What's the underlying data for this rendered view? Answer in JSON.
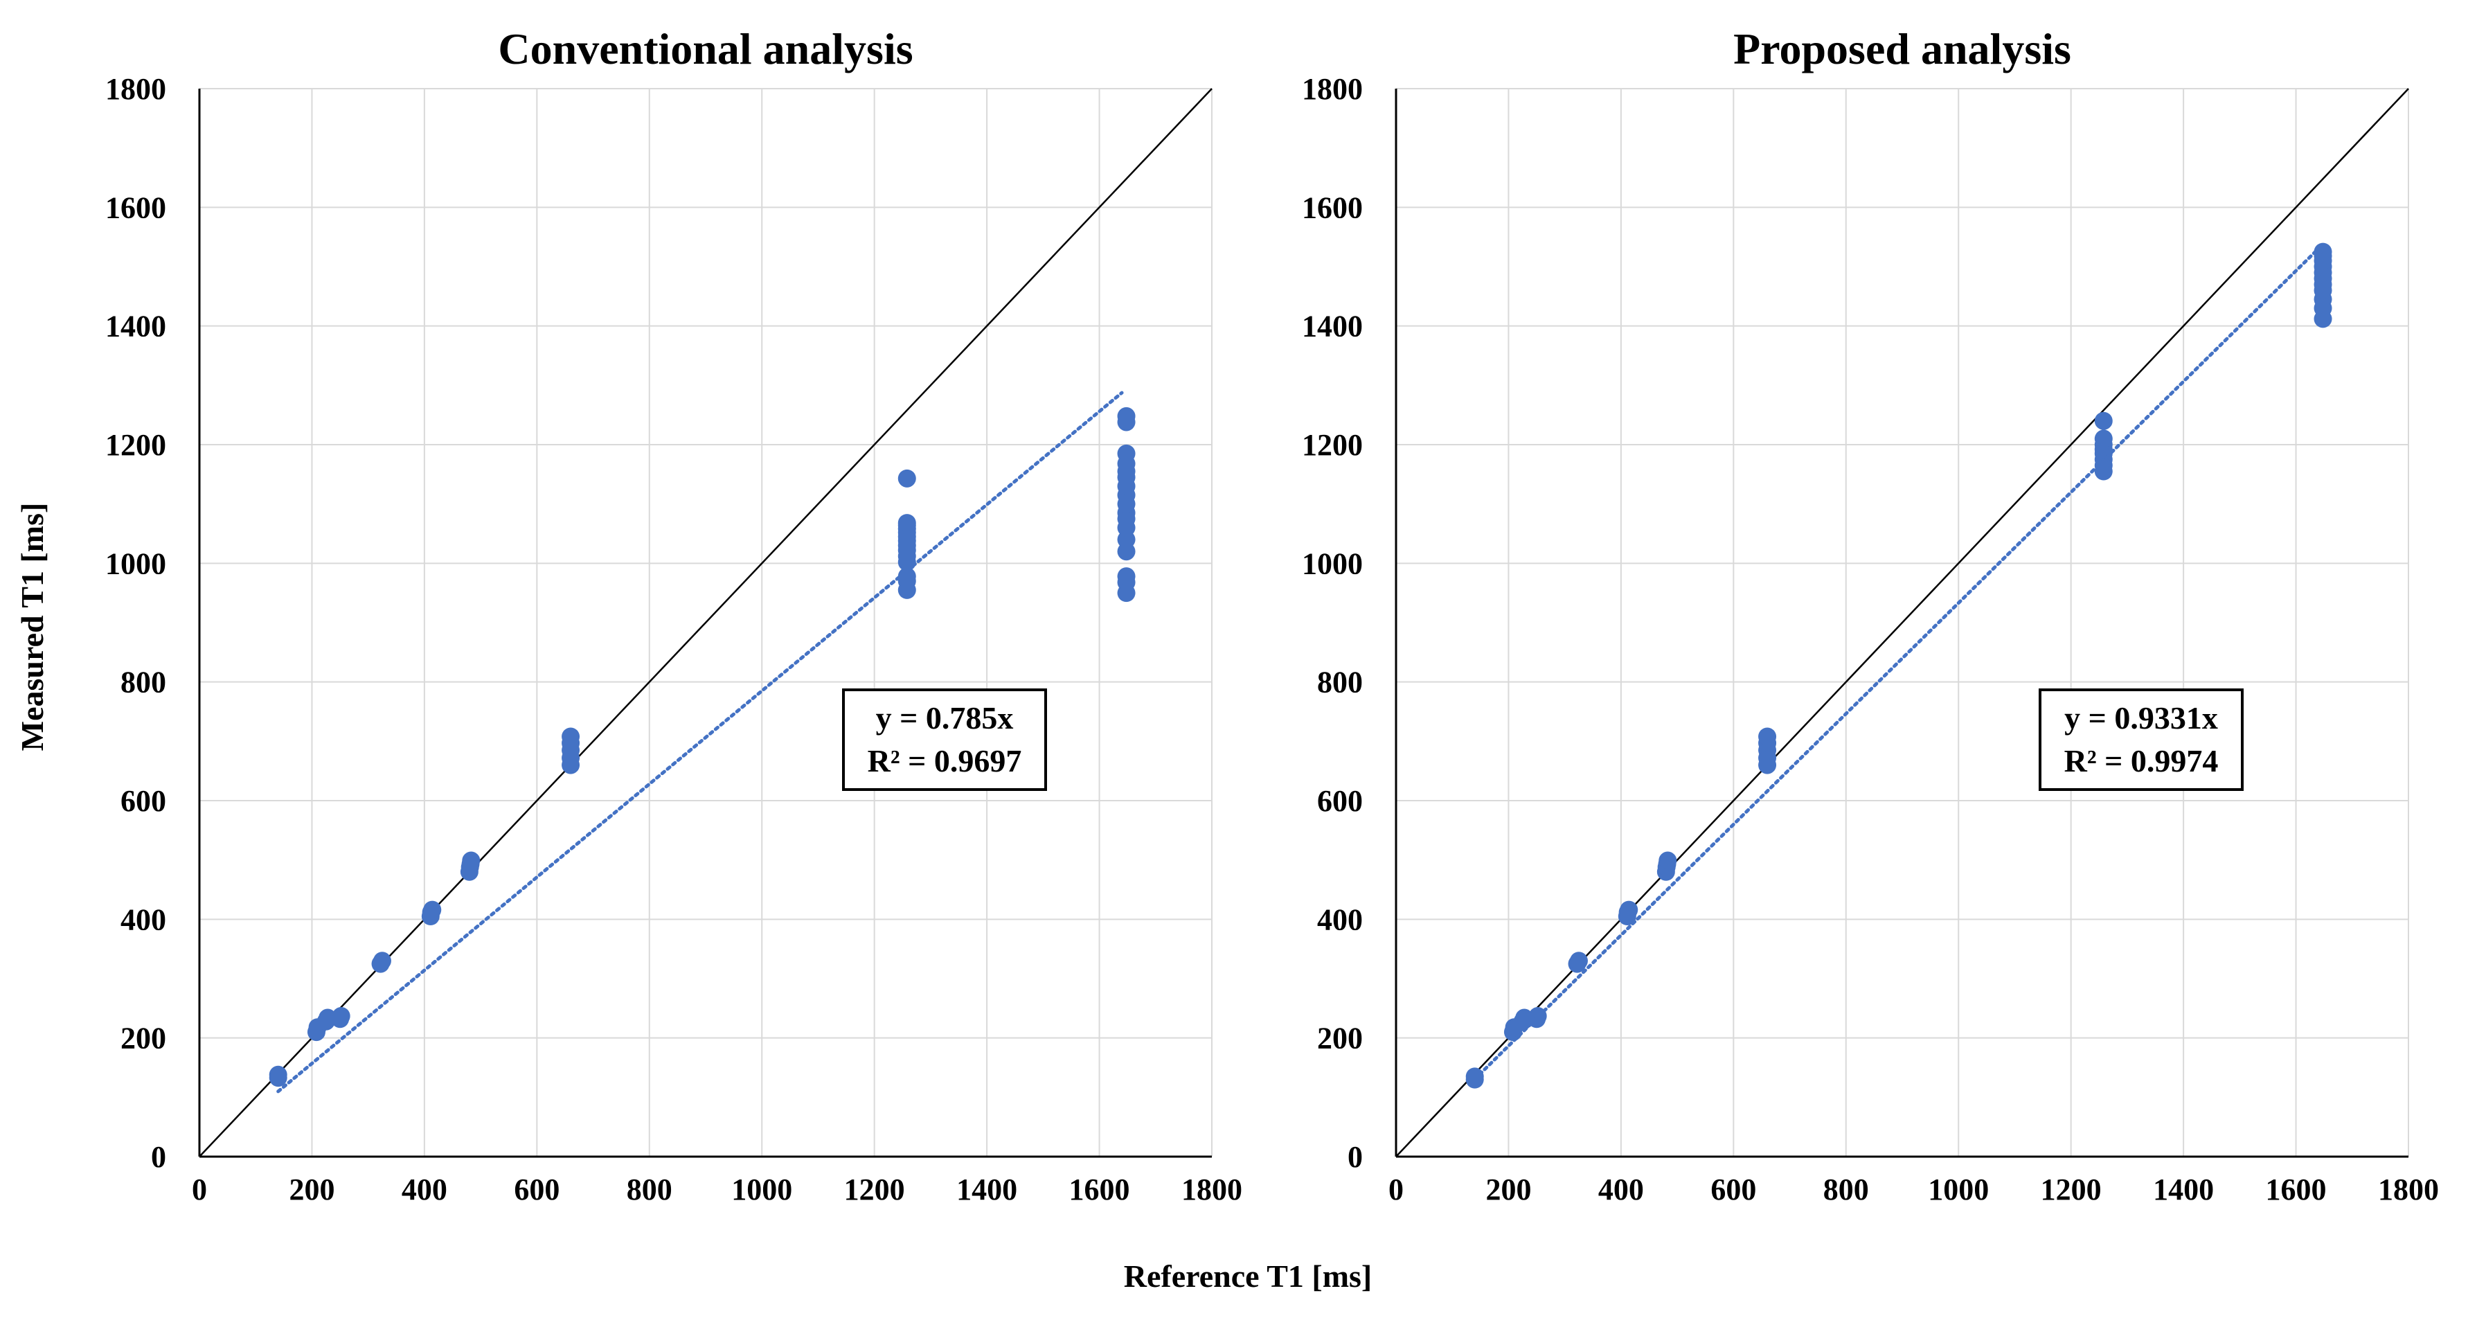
{
  "figure": {
    "ylabel": "Measured T1 [ms]",
    "xlabel": "Reference T1 [ms]"
  },
  "colors": {
    "points": "#4472C4",
    "trendline": "#4472C4",
    "identity_line": "#000000",
    "grid": "#d9d9d9"
  },
  "chart_data": [
    {
      "type": "scatter",
      "title": "Conventional analysis",
      "xlim": [
        0,
        1800
      ],
      "ylim": [
        0,
        1800
      ],
      "xticks": [
        "0",
        "200",
        "400",
        "600",
        "800",
        "1000",
        "1200",
        "1400",
        "1600",
        "1800"
      ],
      "yticks": [
        "0",
        "200",
        "400",
        "600",
        "800",
        "1000",
        "1200",
        "1400",
        "1600",
        "1800"
      ],
      "grid": true,
      "identity_line": true,
      "trendline": {
        "type": "linear",
        "slope": 0.785,
        "intercept": 0,
        "x_range": [
          140,
          1640
        ]
      },
      "equation": [
        "y = 0.785x",
        "R² = 0.9697"
      ],
      "series": [
        {
          "x": [
            140,
            140,
            208,
            210,
            225,
            228,
            250,
            252,
            322,
            325,
            411,
            412,
            414,
            480,
            481,
            482,
            483,
            660,
            660,
            660,
            660,
            660,
            1258,
            1258,
            1258,
            1258,
            1258,
            1258,
            1258,
            1258,
            1258,
            1258,
            1258,
            1258,
            1258,
            1258,
            1648,
            1648,
            1648,
            1648,
            1648,
            1648,
            1648,
            1648,
            1648,
            1648,
            1648,
            1648,
            1648,
            1648,
            1648,
            1648,
            1648
          ],
          "y": [
            133,
            138,
            210,
            218,
            228,
            234,
            232,
            237,
            325,
            330,
            405,
            412,
            416,
            480,
            488,
            493,
            499,
            660,
            672,
            685,
            697,
            708,
            955,
            970,
            978,
            1002,
            1012,
            1022,
            1030,
            1038,
            1045,
            1052,
            1058,
            1064,
            1068,
            1143,
            950,
            968,
            978,
            1020,
            1040,
            1060,
            1075,
            1085,
            1100,
            1115,
            1130,
            1145,
            1155,
            1168,
            1185,
            1238,
            1248
          ]
        }
      ]
    },
    {
      "type": "scatter",
      "title": "Proposed analysis",
      "xlim": [
        0,
        1800
      ],
      "ylim": [
        0,
        1800
      ],
      "xticks": [
        "0",
        "200",
        "400",
        "600",
        "800",
        "1000",
        "1200",
        "1400",
        "1600",
        "1800"
      ],
      "yticks": [
        "0",
        "200",
        "400",
        "600",
        "800",
        "1000",
        "1200",
        "1400",
        "1600",
        "1800"
      ],
      "grid": true,
      "identity_line": true,
      "trendline": {
        "type": "linear",
        "slope": 0.9331,
        "intercept": 0,
        "x_range": [
          140,
          1640
        ]
      },
      "equation": [
        "y = 0.9331x",
        "R² = 0.9974"
      ],
      "series": [
        {
          "x": [
            140,
            140,
            208,
            210,
            225,
            228,
            250,
            252,
            322,
            325,
            411,
            412,
            414,
            480,
            481,
            482,
            483,
            660,
            660,
            660,
            660,
            660,
            1258,
            1258,
            1258,
            1258,
            1258,
            1258,
            1258,
            1258,
            1648,
            1648,
            1648,
            1648,
            1648,
            1648,
            1648,
            1648,
            1648,
            1648,
            1648
          ],
          "y": [
            130,
            135,
            210,
            218,
            228,
            234,
            232,
            237,
            325,
            330,
            405,
            412,
            416,
            480,
            488,
            493,
            499,
            660,
            672,
            685,
            697,
            708,
            1155,
            1165,
            1175,
            1185,
            1192,
            1200,
            1210,
            1240,
            1412,
            1430,
            1445,
            1460,
            1470,
            1480,
            1490,
            1500,
            1510,
            1518,
            1525
          ]
        }
      ]
    }
  ]
}
